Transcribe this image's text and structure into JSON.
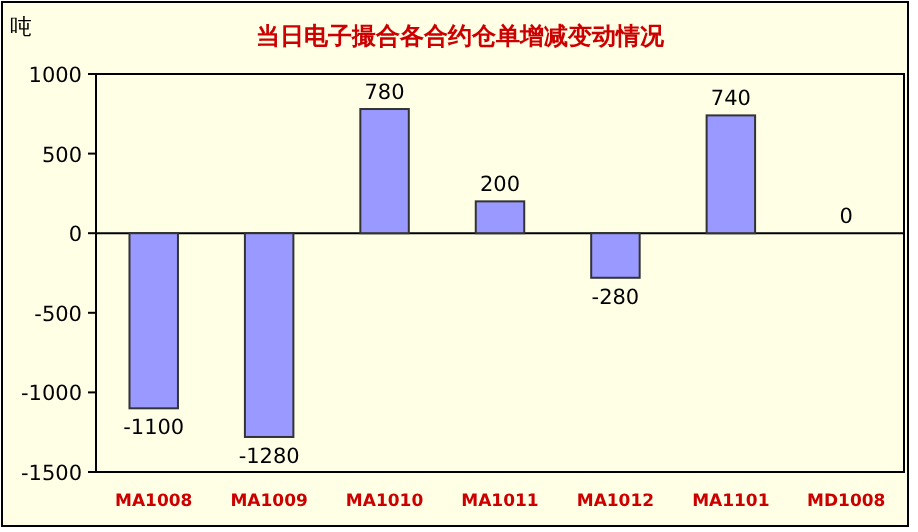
{
  "chart_data": {
    "type": "bar",
    "title": "当日电子撮合各合约仓单增减变动情况",
    "ylabel": "吨",
    "categories": [
      "MA1008",
      "MA1009",
      "MA1010",
      "MA1011",
      "MA1012",
      "MA1101",
      "MD1008"
    ],
    "values": [
      -1100,
      -1280,
      780,
      200,
      -280,
      740,
      0
    ],
    "color": "#9999ff",
    "ylim": [
      -1500,
      1000
    ],
    "yticks": [
      -1500,
      -1000,
      -500,
      0,
      500,
      1000
    ],
    "data_labels": true
  }
}
